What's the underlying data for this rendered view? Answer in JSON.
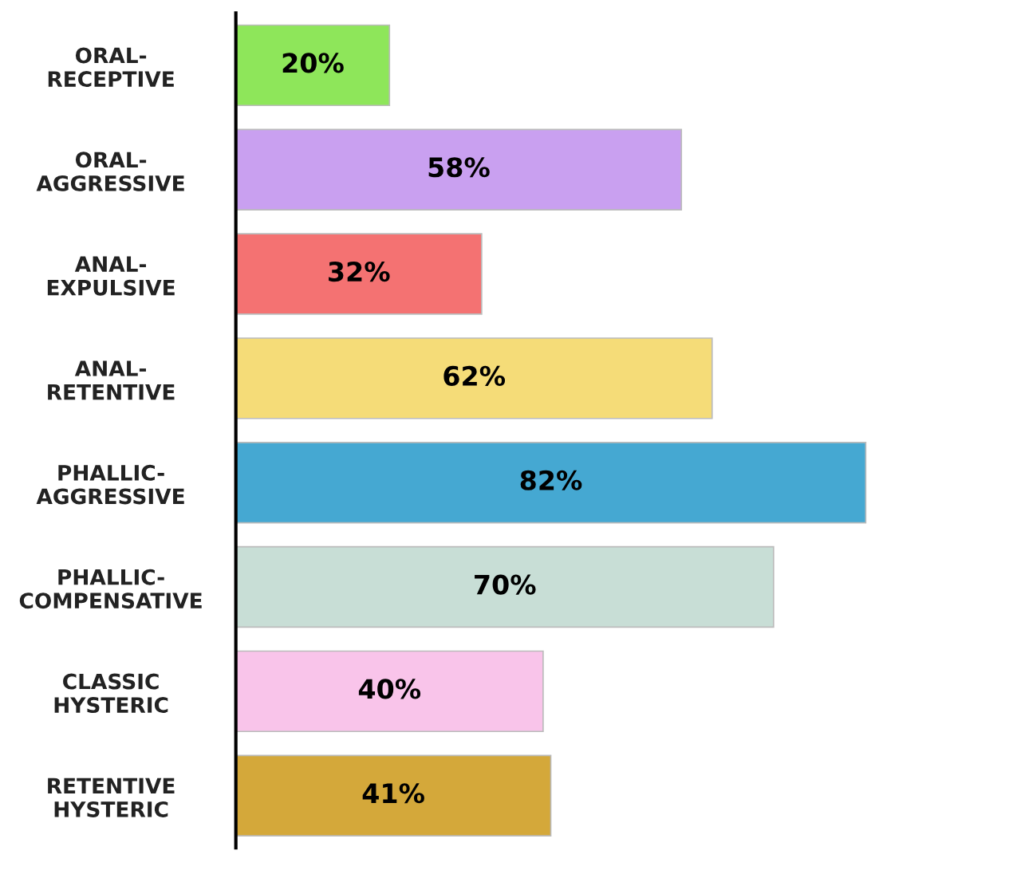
{
  "chart_data": {
    "type": "bar",
    "orientation": "horizontal",
    "categories": [
      "ORAL-\nRECEPTIVE",
      "ORAL-\nAGGRESSIVE",
      "ANAL-\nEXPULSIVE",
      "ANAL-\nRETENTIVE",
      "PHALLIC-\nAGGRESSIVE",
      "PHALLIC-\nCOMPENSATIVE",
      "CLASSIC\nHYSTERIC",
      "RETENTIVE\nHYSTERIC"
    ],
    "values": [
      20,
      58,
      32,
      62,
      82,
      70,
      40,
      41
    ],
    "value_labels": [
      "20%",
      "58%",
      "32%",
      "62%",
      "82%",
      "70%",
      "40%",
      "41%"
    ],
    "colors": [
      "#8ee65a",
      "#c9a0f0",
      "#f47272",
      "#f5dc78",
      "#45a8d2",
      "#c8ded6",
      "#f9c4ea",
      "#d4a83a"
    ],
    "tick_labels": "y",
    "grid": false,
    "legend": false
  }
}
